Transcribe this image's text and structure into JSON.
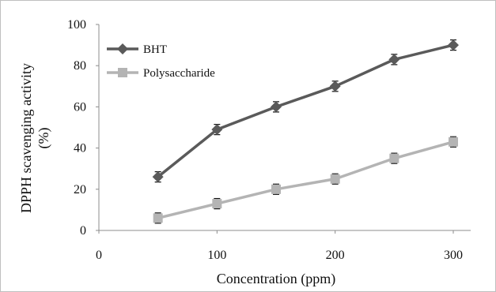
{
  "chart_data": {
    "type": "line",
    "title": "",
    "xlabel": "Concentration (ppm)",
    "ylabel_line1": "DPPH scavenging activity",
    "ylabel_line2": "(%)",
    "xlim": [
      0,
      300
    ],
    "ylim": [
      0,
      100
    ],
    "x_ticks": [
      "0",
      "100",
      "200",
      "300"
    ],
    "y_ticks": [
      "0",
      "20",
      "40",
      "60",
      "80",
      "100"
    ],
    "x_tick_values": [
      0,
      100,
      200,
      300
    ],
    "y_tick_values": [
      0,
      20,
      40,
      60,
      80,
      100
    ],
    "grid": false,
    "legend_position": "top-left",
    "series": [
      {
        "name": "BHT",
        "color": "#5a5a5a",
        "marker": "diamond",
        "x": [
          50,
          100,
          150,
          200,
          250,
          300
        ],
        "values": [
          26,
          49,
          60,
          70,
          83,
          90
        ],
        "error": [
          2.5,
          2.5,
          2.5,
          2.5,
          2.5,
          2.5
        ]
      },
      {
        "name": "Polysaccharide",
        "color": "#b4b4b4",
        "marker": "square",
        "x": [
          50,
          100,
          150,
          200,
          250,
          300
        ],
        "values": [
          6,
          13,
          20,
          25,
          35,
          43
        ],
        "error": [
          2.5,
          2.5,
          2.5,
          2.5,
          2.5,
          2.5
        ]
      }
    ]
  }
}
